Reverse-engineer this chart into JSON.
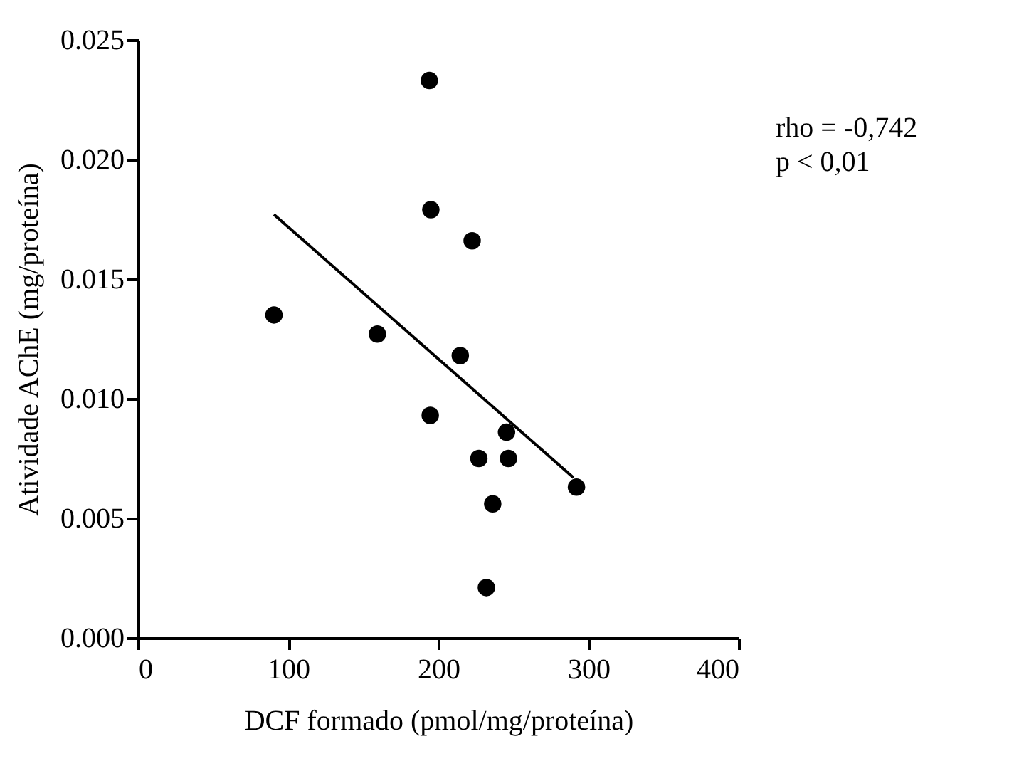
{
  "chart_data": {
    "type": "scatter",
    "xlabel": "DCF formado (pmol/mg/proteína)",
    "ylabel": "Atividade AChE (mg/proteína)",
    "annotations": [
      "rho = -0,742",
      "p < 0,01"
    ],
    "series": [
      {
        "color": "#000000",
        "marker": "circle",
        "x": [
          90.5,
          159.4,
          194,
          195,
          222.5,
          214.6,
          194.6,
          245.4,
          227,
          246.7,
          292,
          236.2,
          232
        ],
        "values": [
          0.0135,
          0.0127,
          0.0233,
          0.0179,
          0.0166,
          0.0118,
          0.0093,
          0.0086,
          0.0075,
          0.0075,
          0.0063,
          0.0056,
          0.0021
        ]
      },
      {
        "type": "line",
        "color": "#000000",
        "x": [
          90.5,
          290
        ],
        "values": [
          0.0177,
          0.0067
        ]
      }
    ],
    "xlim": [
      0,
      400
    ],
    "xticks": [
      0,
      100,
      200,
      300,
      400
    ],
    "ylim": [
      0,
      0.025
    ],
    "yticks": [
      {
        "value": 0,
        "label": "0.000"
      },
      {
        "value": 0.005,
        "label": "0.005"
      },
      {
        "value": 0.01,
        "label": "0.010"
      },
      {
        "value": 0.015,
        "label": "0.015"
      },
      {
        "value": 0.02,
        "label": "0.020"
      },
      {
        "value": 0.025,
        "label": "0.025"
      }
    ],
    "grid": false
  }
}
